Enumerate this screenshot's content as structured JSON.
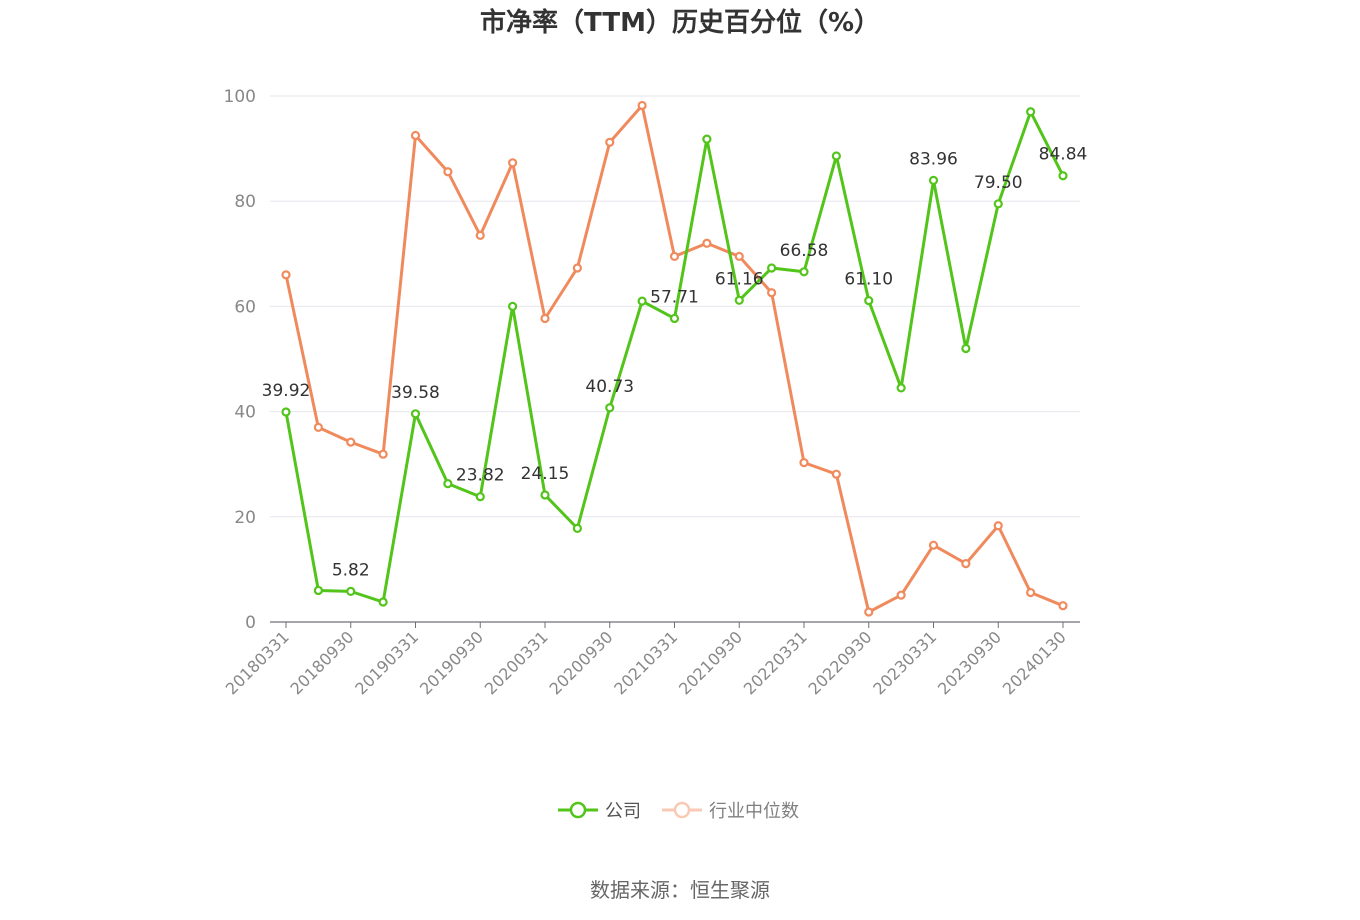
{
  "title": "市净率（TTM）历史百分位（%）",
  "source": "数据来源：恒生聚源",
  "chart_data": {
    "type": "line",
    "title": "市净率（TTM）历史百分位（%）",
    "ylim": [
      0,
      100
    ],
    "yticks": [
      0,
      20,
      40,
      60,
      80,
      100
    ],
    "grid": true,
    "legend_position": "bottom",
    "x": [
      "20180331",
      "20180630",
      "20180930",
      "20181231",
      "20190331",
      "20190630",
      "20190930",
      "20191231",
      "20200331",
      "20200630",
      "20200930",
      "20201231",
      "20210331",
      "20210630",
      "20210930",
      "20211231",
      "20220331",
      "20220630",
      "20220930",
      "20221231",
      "20230331",
      "20230630",
      "20230930",
      "20231231",
      "20240130"
    ],
    "xtick_labels": [
      "20180331",
      "20180930",
      "20190331",
      "20190930",
      "20200331",
      "20200930",
      "20210331",
      "20210930",
      "20220331",
      "20220930",
      "20230331",
      "20230930",
      "20240130"
    ],
    "series": [
      {
        "name": "公司",
        "color": "#52c41a",
        "values": [
          39.92,
          6.0,
          5.82,
          3.8,
          39.58,
          26.3,
          23.82,
          60.0,
          24.15,
          17.8,
          40.73,
          61.0,
          57.71,
          91.8,
          61.16,
          67.3,
          66.58,
          88.6,
          61.1,
          44.5,
          83.96,
          52.0,
          79.5,
          97.0,
          84.84
        ],
        "labels": [
          "39.92",
          "",
          "5.82",
          "",
          "39.58",
          "",
          "23.82",
          "",
          "24.15",
          "",
          "40.73",
          "",
          "57.71",
          "",
          "61.16",
          "",
          "66.58",
          "",
          "61.10",
          "",
          "83.96",
          "",
          "79.50",
          "",
          "84.84"
        ]
      },
      {
        "name": "行业中位数",
        "color": "#f08a5d",
        "values": [
          66.0,
          37.0,
          34.2,
          31.9,
          92.5,
          85.6,
          73.5,
          87.3,
          57.7,
          67.3,
          91.2,
          98.2,
          69.5,
          72.0,
          69.5,
          62.6,
          30.3,
          28.1,
          1.9,
          5.1,
          14.6,
          11.1,
          18.3,
          5.6,
          3.1
        ]
      }
    ]
  }
}
